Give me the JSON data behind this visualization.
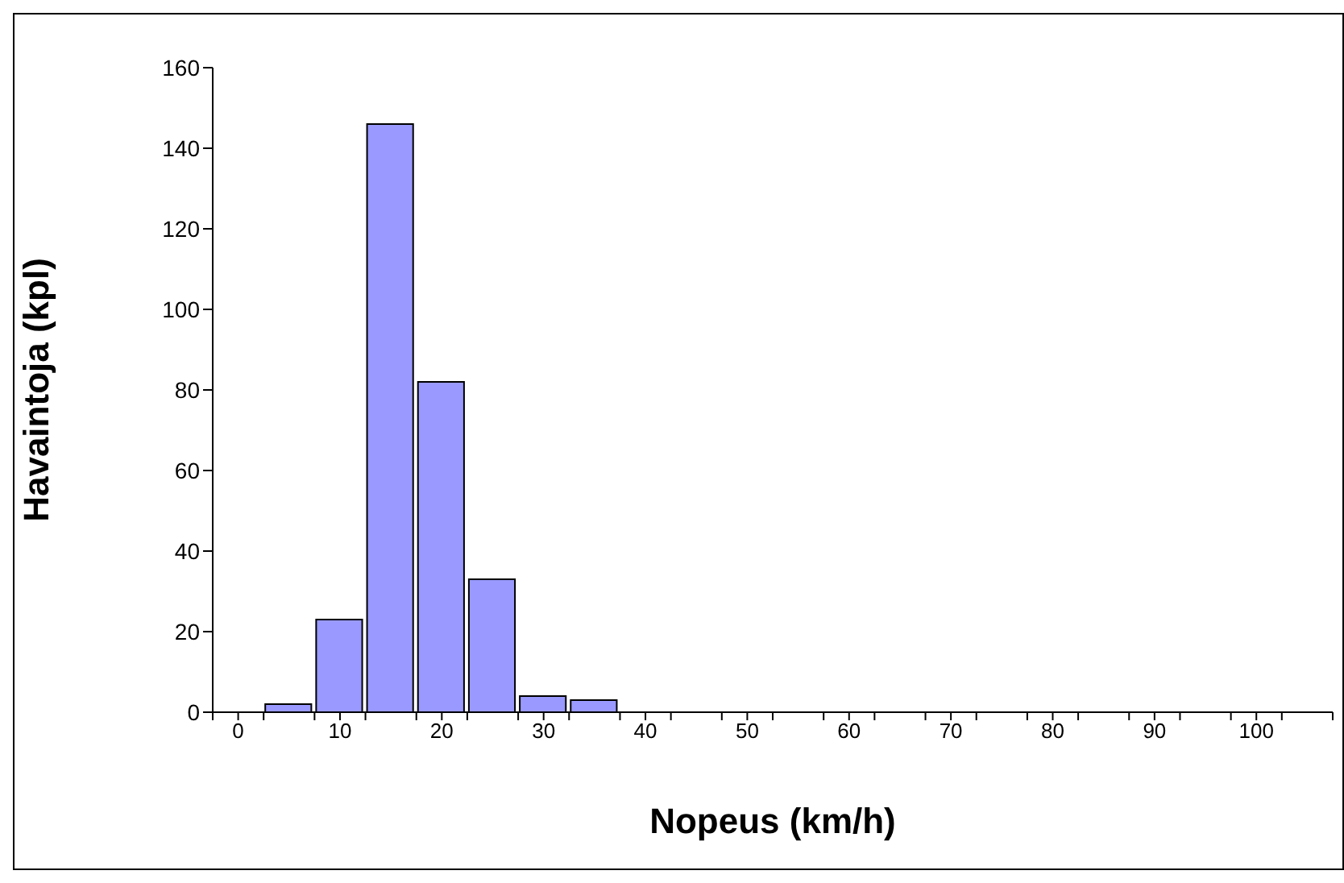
{
  "chart_data": {
    "type": "histogram",
    "xlabel": "Nopeus (km/h)",
    "ylabel": "Havaintoja (kpl)",
    "bins": [
      -2.5,
      2.5,
      7.5,
      12.5,
      17.5,
      22.5,
      27.5,
      32.5,
      37.5,
      42.5,
      47.5,
      52.5,
      57.5,
      62.5,
      67.5,
      72.5,
      77.5,
      82.5,
      87.5,
      92.5,
      97.5,
      102.5,
      107.5
    ],
    "values": [
      0,
      2,
      23,
      146,
      82,
      33,
      4,
      3,
      0,
      0,
      0,
      0,
      0,
      0,
      0,
      0,
      0,
      0,
      0,
      0,
      0,
      0
    ],
    "color": "#9999ff",
    "xlim": [
      -2.5,
      107.5
    ],
    "xticks": [
      {
        "value": -2.5,
        "label": null
      },
      0,
      {
        "value": 2.5,
        "label": null
      },
      {
        "value": 7.5,
        "label": null
      },
      10,
      {
        "value": 12.5,
        "label": null
      },
      {
        "value": 17.5,
        "label": null
      },
      20,
      {
        "value": 22.5,
        "label": null
      },
      {
        "value": 27.5,
        "label": null
      },
      30,
      {
        "value": 32.5,
        "label": null
      },
      {
        "value": 37.5,
        "label": null
      },
      40,
      {
        "value": 42.5,
        "label": null
      },
      {
        "value": 47.5,
        "label": null
      },
      50,
      {
        "value": 52.5,
        "label": null
      },
      {
        "value": 57.5,
        "label": null
      },
      60,
      {
        "value": 62.5,
        "label": null
      },
      {
        "value": 67.5,
        "label": null
      },
      70,
      {
        "value": 72.5,
        "label": null
      },
      {
        "value": 77.5,
        "label": null
      },
      80,
      {
        "value": 82.5,
        "label": null
      },
      {
        "value": 87.5,
        "label": null
      },
      90,
      {
        "value": 92.5,
        "label": null
      },
      {
        "value": 97.5,
        "label": null
      },
      100,
      {
        "value": 102.5,
        "label": null
      },
      {
        "value": 107.5,
        "label": null
      }
    ],
    "ylim": [
      0,
      160
    ],
    "yticks": [
      0,
      20,
      40,
      60,
      80,
      100,
      120,
      140,
      160
    ]
  }
}
